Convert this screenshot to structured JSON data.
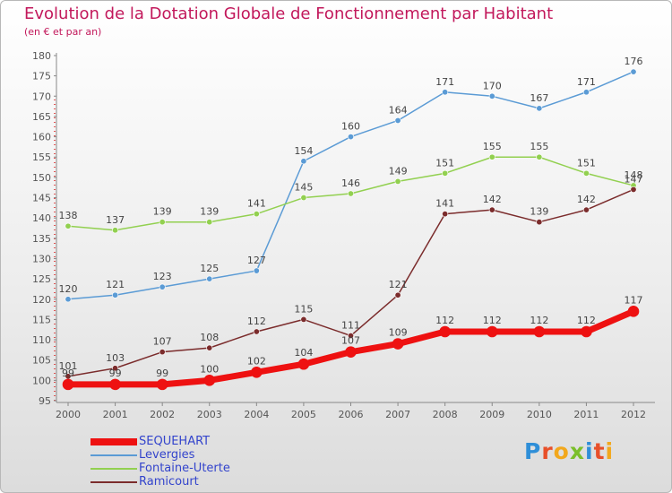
{
  "title": "Evolution de la Dotation Globale de Fonctionnement par Habitant",
  "subtitle": "(en € et par an)",
  "logo": {
    "text": "Proxiti",
    "letter_colors": [
      "#2f8fd8",
      "#e8502a",
      "#f2a81d",
      "#7bbf2a",
      "#2f8fd8",
      "#e8502a",
      "#f2a81d"
    ]
  },
  "chart_data": {
    "type": "line",
    "x": [
      "2000",
      "2001",
      "2002",
      "2003",
      "2004",
      "2005",
      "2006",
      "2007",
      "2008",
      "2009",
      "2010",
      "2011",
      "2012"
    ],
    "ylim": [
      95,
      180
    ],
    "yticks": [
      "95",
      "100",
      "105",
      "110",
      "115",
      "120",
      "125",
      "130",
      "135",
      "140",
      "145",
      "150",
      "155",
      "160",
      "165",
      "170",
      "175",
      "180"
    ],
    "grid": false,
    "legend_position": "bottom-left",
    "series": [
      {
        "name": "SEQUEHART",
        "color": "#ee1111",
        "emphasis": true,
        "values": [
          99,
          99,
          99,
          100,
          102,
          104,
          107,
          109,
          112,
          112,
          112,
          112,
          117
        ]
      },
      {
        "name": "Levergies",
        "color": "#5b9bd5",
        "emphasis": false,
        "values": [
          120,
          121,
          123,
          125,
          127,
          154,
          160,
          164,
          171,
          170,
          167,
          171,
          176
        ]
      },
      {
        "name": "Fontaine-Uterte",
        "color": "#92d050",
        "emphasis": false,
        "values": [
          138,
          137,
          139,
          139,
          141,
          145,
          146,
          149,
          151,
          155,
          155,
          151,
          148
        ]
      },
      {
        "name": "Ramicourt",
        "color": "#7b2c2c",
        "emphasis": false,
        "values": [
          101,
          103,
          107,
          108,
          112,
          115,
          111,
          121,
          141,
          142,
          139,
          142,
          147
        ]
      }
    ]
  }
}
